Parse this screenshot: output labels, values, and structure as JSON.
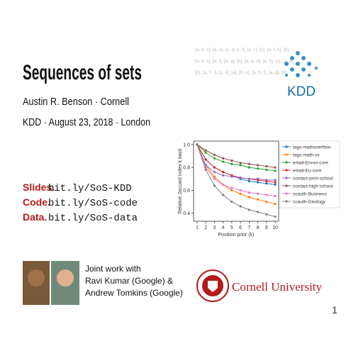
{
  "header": {
    "title": "Sequences of sets",
    "author": "Austin R. Benson · Cornell",
    "event": "KDD · August 23, 2018 · London"
  },
  "background_sets": [
    "[a, b, c], [a, b], [c, d, e, f], [a, c], [c], [a, f, h], [b], ...",
    "[a, b, c], [d, f], [a, g], [b], [a, b, d], [a, h], [c], [a, e], ...",
    "[b], [a, h, i], [c, k], [a], [b, e], [a, b, f], [a, g], [d], ..."
  ],
  "kdd_logo": "KDD",
  "links": [
    {
      "label": "Slides.",
      "url": "bit.ly/SoS-KDD"
    },
    {
      "label": "Code.",
      "url": "bit.ly/SoS-code"
    },
    {
      "label": "Data.",
      "url": "bit.ly/SoS-data"
    }
  ],
  "chart_data": {
    "type": "line",
    "xlabel": "Position prior (k)",
    "ylabel": "Relative Jaccard index k back",
    "x": [
      1,
      2,
      3,
      4,
      5,
      6,
      7,
      8,
      9,
      10
    ],
    "xlim": [
      0.6,
      10.4
    ],
    "xticks": [
      1,
      2,
      3,
      4,
      5,
      6,
      7,
      8,
      9,
      10
    ],
    "ylim": [
      0.33,
      1.03
    ],
    "yticks": [
      0.4,
      0.6,
      0.8,
      {
        "value": 1,
        "label": "1.0"
      }
    ],
    "grid": false,
    "legend": "right",
    "series": [
      {
        "name": "tags-mathoverflow",
        "color": "#1f77b4",
        "values": [
          1,
          0.87,
          0.8,
          0.76,
          0.73,
          0.7,
          0.68,
          0.67,
          0.66,
          0.65
        ]
      },
      {
        "name": "tags-math-sx",
        "color": "#ff7f0e",
        "values": [
          1,
          0.82,
          0.72,
          0.65,
          0.6,
          0.57,
          0.54,
          0.52,
          0.5,
          0.48
        ]
      },
      {
        "name": "email-Enron-core",
        "color": "#2ca02c",
        "values": [
          1,
          0.93,
          0.88,
          0.85,
          0.83,
          0.82,
          0.8,
          0.79,
          0.78,
          0.77
        ]
      },
      {
        "name": "email-Eu-core",
        "color": "#d62728",
        "values": [
          1,
          0.87,
          0.8,
          0.76,
          0.73,
          0.71,
          0.7,
          0.69,
          0.68,
          0.67
        ]
      },
      {
        "name": "contact-prim-school",
        "color": "#9467bd",
        "values": [
          1,
          0.82,
          0.76,
          0.73,
          0.72,
          0.71,
          0.7,
          0.7,
          0.69,
          0.69
        ]
      },
      {
        "name": "contact-high-school",
        "color": "#8c564b",
        "values": [
          1,
          0.95,
          0.91,
          0.88,
          0.86,
          0.84,
          0.83,
          0.82,
          0.81,
          0.8
        ]
      },
      {
        "name": "coauth-Business",
        "color": "#e377c2",
        "values": [
          1,
          0.8,
          0.7,
          0.65,
          0.62,
          0.6,
          0.58,
          0.57,
          0.56,
          0.55
        ]
      },
      {
        "name": "coauth-Geology",
        "color": "#7f7f7f",
        "values": [
          1,
          0.78,
          0.64,
          0.56,
          0.5,
          0.46,
          0.43,
          0.41,
          0.39,
          0.37
        ]
      }
    ]
  },
  "credits": [
    "Joint work with",
    "Ravi Kumar (Google) &",
    "Andrew Tomkins (Google)"
  ],
  "university": "Cornell University",
  "page_number": "1"
}
